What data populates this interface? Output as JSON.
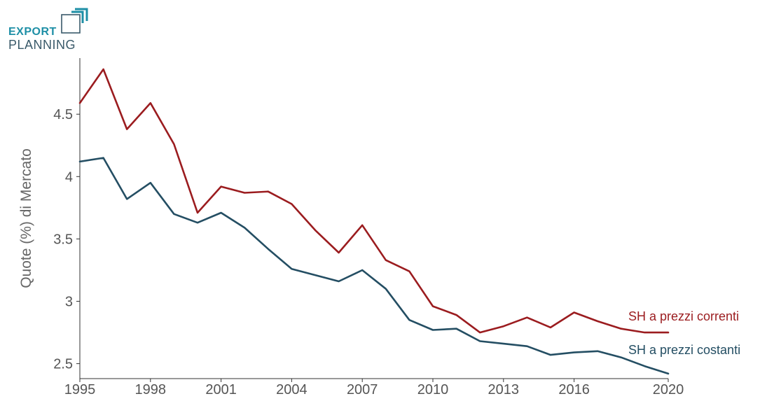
{
  "logo": {
    "line1": "EXPORT",
    "line2": "PLANNING",
    "accent_color": "#1e8fa6",
    "text_color": "#3a5a6a"
  },
  "chart_data": {
    "type": "line",
    "ylabel": "Quote (%) di Mercato",
    "xlabel": "",
    "xlim": [
      1995,
      2020
    ],
    "ylim": [
      2.38,
      4.95
    ],
    "x_ticks": [
      1995,
      1998,
      2001,
      2004,
      2007,
      2010,
      2013,
      2016,
      2020
    ],
    "y_ticks": [
      2.5,
      3,
      3.5,
      4,
      4.5
    ],
    "y_tick_labels": [
      "2.5",
      "3",
      "3.5",
      "4",
      "4.5"
    ],
    "grid": false,
    "x": [
      1995,
      1996,
      1997,
      1998,
      1999,
      2000,
      2001,
      2002,
      2003,
      2004,
      2005,
      2006,
      2007,
      2008,
      2009,
      2010,
      2011,
      2012,
      2013,
      2014,
      2015,
      2016,
      2017,
      2018,
      2019,
      2020
    ],
    "series": [
      {
        "name": "SH a prezzi correnti",
        "color": "#9b1c1f",
        "values": [
          4.59,
          4.86,
          4.38,
          4.59,
          4.26,
          3.71,
          3.92,
          3.87,
          3.88,
          3.78,
          3.57,
          3.39,
          3.61,
          3.33,
          3.24,
          2.96,
          2.89,
          2.75,
          2.8,
          2.87,
          2.79,
          2.91,
          2.84,
          2.78,
          2.75,
          2.75
        ]
      },
      {
        "name": "SH a prezzi costanti",
        "color": "#244e63",
        "values": [
          4.12,
          4.15,
          3.82,
          3.95,
          3.7,
          3.63,
          3.71,
          3.59,
          3.42,
          3.26,
          3.21,
          3.16,
          3.25,
          3.1,
          2.85,
          2.77,
          2.78,
          2.68,
          2.66,
          2.64,
          2.57,
          2.59,
          2.6,
          2.55,
          2.48,
          2.42
        ]
      }
    ]
  }
}
